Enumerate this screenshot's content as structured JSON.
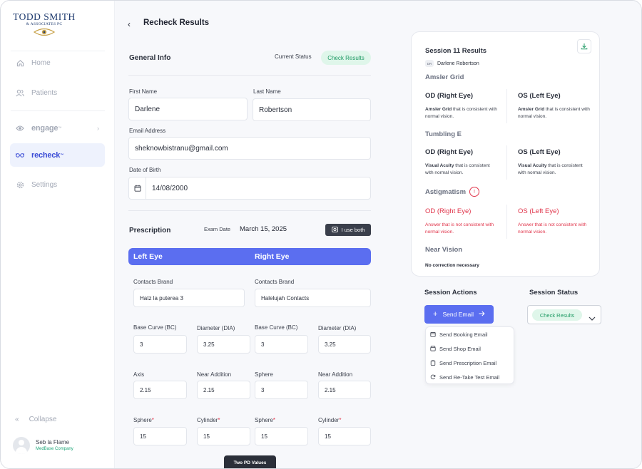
{
  "logo": {
    "name": "TODD SMITH",
    "sub": "& ASSOCIATES PC"
  },
  "sidebar": {
    "items": [
      {
        "label": "Home",
        "icon": "home-icon"
      },
      {
        "label": "Patients",
        "icon": "users-icon"
      },
      {
        "label": "engage",
        "tm": "™",
        "icon": "engage-icon"
      },
      {
        "label": "recheck",
        "tm": "™",
        "icon": "glasses-icon"
      },
      {
        "label": "Settings",
        "icon": "gear-icon"
      }
    ],
    "collapse_label": "Collapse",
    "user": {
      "name": "Seb la Flame",
      "company": "MedBase Company"
    }
  },
  "header": {
    "back_glyph": "‹",
    "title": "Recheck Results"
  },
  "general": {
    "title": "General Info",
    "status_label": "Current Status",
    "status_value": "Check Results",
    "first_name_label": "First Name",
    "first_name": "Darlene",
    "last_name_label": "Last Name",
    "last_name": "Robertson",
    "email_label": "Email Address",
    "email": "sheknowbistranu@gmail.com",
    "dob_label": "Date of Birth",
    "dob": "14/08/2000"
  },
  "prescription": {
    "title": "Prescription",
    "exam_label": "Exam Date",
    "exam_date": "March 15, 2025",
    "use_both": "I use both",
    "left_eye": "Left Eye",
    "right_eye": "Right Eye",
    "contacts_label": "Contacts Brand",
    "left_contacts": "Hatz la puterea 3",
    "right_contacts": "Halelujah Contacts",
    "bc_label": "Base Curve (BC)",
    "dia_label": "Diameter (DIA)",
    "axis_label": "Axis",
    "near_label": "Near Addition",
    "sphere_label": "Sphere",
    "cylinder_label": "Cylinder",
    "required_mark": "*",
    "left": {
      "bc": "3",
      "dia": "3.25",
      "axis": "2.15",
      "near": "2.15",
      "sphere": "15",
      "cylinder": "15"
    },
    "right": {
      "bc": "3",
      "dia": "3.25",
      "sphere_top": "3",
      "near": "2.15",
      "sphere": "15",
      "cylinder": "15"
    },
    "two_pd": "Two PD Values"
  },
  "results": {
    "title": "Session 11 Results",
    "patient_initials": "DR",
    "patient_name": "Darlene Robertson",
    "od": "OD (Right Eye)",
    "os": "OS (Left Eye)",
    "amsler": {
      "heading": "Amsler Grid",
      "bold": "Amsler Grid",
      "text": " that is consistent with normal vision."
    },
    "tumbling": {
      "heading": "Tumbling E",
      "bold": "Visual Acuity",
      "text": " that is consistent with normal vision."
    },
    "astig": {
      "heading": "Astigmatism",
      "warn": "!",
      "text": "Answer that is not consistent with normal vision."
    },
    "near": {
      "heading": "Near Vision",
      "text": "No correction necessary"
    }
  },
  "actions": {
    "title": "Session Actions",
    "send_email": "Send Email",
    "menu": [
      {
        "label": "Send Booking Email",
        "icon": "calendar-icon"
      },
      {
        "label": "Send Shop Email",
        "icon": "shop-icon"
      },
      {
        "label": "Send Prescription Email",
        "icon": "clipboard-icon"
      },
      {
        "label": "Send Re-Take Test Email",
        "icon": "refresh-icon"
      }
    ]
  },
  "session_status": {
    "title": "Session Status",
    "value": "Check Results"
  },
  "colors": {
    "accent": "#5b6ef0",
    "success": "#1f9a64",
    "danger": "#e0344a",
    "brand": "#1e3a6e"
  }
}
